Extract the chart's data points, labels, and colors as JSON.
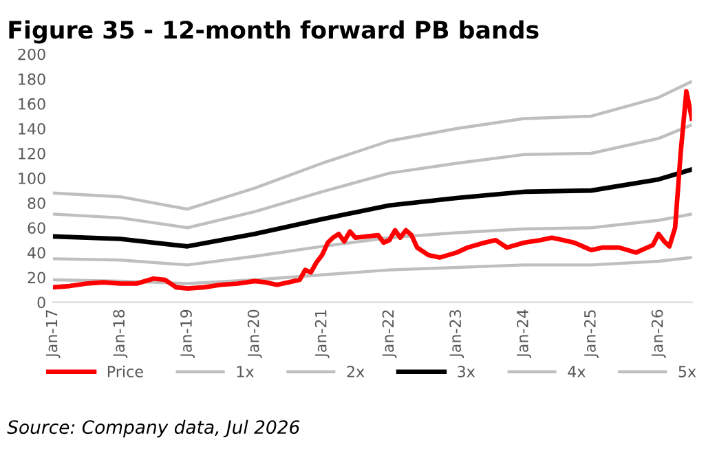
{
  "chart_data": {
    "type": "line",
    "title": "Figure 35 - 12-month forward PB bands",
    "annotations": [
      "Source: Company data, Jul 2026"
    ],
    "ylim": [
      0,
      200
    ],
    "yticks": [
      0,
      20,
      40,
      60,
      80,
      100,
      120,
      140,
      160,
      180,
      200
    ],
    "xlim": [
      "2017-01",
      "2026-07"
    ],
    "xticks": [
      {
        "value": "2017-01",
        "label": "Jan-17"
      },
      {
        "value": "2018-01",
        "label": "Jan-18"
      },
      {
        "value": "2019-01",
        "label": "Jan-19"
      },
      {
        "value": "2020-01",
        "label": "Jan-20"
      },
      {
        "value": "2021-01",
        "label": "Jan-21"
      },
      {
        "value": "2022-01",
        "label": "Jan-22"
      },
      {
        "value": "2023-01",
        "label": "Jan-23"
      },
      {
        "value": "2024-01",
        "label": "Jan-24"
      },
      {
        "value": "2025-01",
        "label": "Jan-25"
      },
      {
        "value": "2026-01",
        "label": "Jan-26"
      }
    ],
    "grid": false,
    "legend": "bottom",
    "marker": "none",
    "line_style": "solid",
    "series": [
      {
        "name": "Price",
        "color": "#ff0000",
        "x": [
          "2017-01",
          "2017-04",
          "2017-07",
          "2017-10",
          "2018-01",
          "2018-04",
          "2018-07",
          "2018-09",
          "2018-11",
          "2019-01",
          "2019-04",
          "2019-07",
          "2019-10",
          "2020-01",
          "2020-03",
          "2020-05",
          "2020-07",
          "2020-09",
          "2020-10",
          "2020-11",
          "2020-12",
          "2021-01",
          "2021-02",
          "2021-03",
          "2021-04",
          "2021-05",
          "2021-06",
          "2021-07",
          "2021-09",
          "2021-11",
          "2021-12",
          "2022-01",
          "2022-02",
          "2022-03",
          "2022-04",
          "2022-05",
          "2022-06",
          "2022-08",
          "2022-10",
          "2023-01",
          "2023-03",
          "2023-06",
          "2023-08",
          "2023-10",
          "2024-01",
          "2024-04",
          "2024-06",
          "2024-08",
          "2024-10",
          "2024-12",
          "2025-01",
          "2025-03",
          "2025-06",
          "2025-09",
          "2025-12",
          "2026-01",
          "2026-02",
          "2026-03",
          "2026-04",
          "2026-05",
          "2026-06",
          "2026-07"
        ],
        "values": [
          12,
          13,
          15,
          16,
          15,
          15,
          19,
          18,
          12,
          11,
          12,
          14,
          15,
          17,
          16,
          14,
          16,
          18,
          26,
          24,
          32,
          38,
          48,
          52,
          55,
          49,
          57,
          52,
          53,
          54,
          48,
          50,
          58,
          52,
          58,
          54,
          44,
          38,
          36,
          40,
          44,
          48,
          50,
          44,
          48,
          50,
          52,
          50,
          48,
          44,
          42,
          44,
          44,
          40,
          46,
          55,
          49,
          45,
          60,
          120,
          170,
          148
        ]
      },
      {
        "name": "1x",
        "color": "#bfbfbf",
        "values": [
          18,
          17,
          15,
          18,
          22,
          26,
          28,
          30,
          30,
          33,
          36
        ]
      },
      {
        "name": "2x",
        "color": "#bfbfbf",
        "values": [
          35,
          34,
          30,
          37,
          45,
          52,
          56,
          59,
          60,
          66,
          71
        ]
      },
      {
        "name": "3x",
        "color": "#000000",
        "values": [
          53,
          51,
          45,
          55,
          67,
          78,
          84,
          89,
          90,
          99,
          107
        ]
      },
      {
        "name": "4x",
        "color": "#bfbfbf",
        "values": [
          71,
          68,
          60,
          73,
          89,
          104,
          112,
          119,
          120,
          132,
          143
        ]
      },
      {
        "name": "5x",
        "color": "#bfbfbf",
        "values": [
          88,
          85,
          75,
          92,
          112,
          130,
          140,
          148,
          150,
          165,
          178
        ]
      }
    ],
    "x": [
      "2017-01",
      "2018-01",
      "2019-01",
      "2020-01",
      "2021-01",
      "2022-01",
      "2023-01",
      "2024-01",
      "2025-01",
      "2026-01",
      "2026-07"
    ]
  }
}
